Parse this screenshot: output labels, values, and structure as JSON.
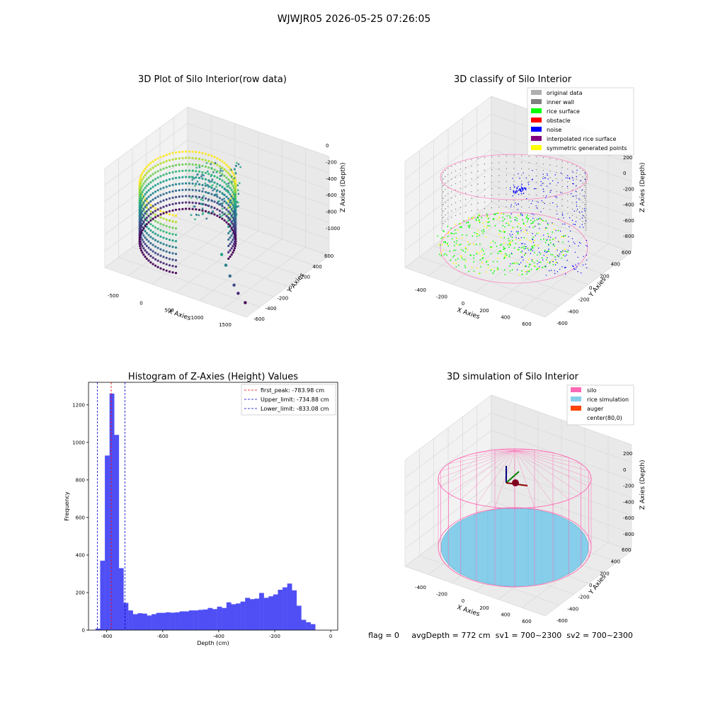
{
  "suptitle": "WJWJR05 2026-05-25 07:26:05",
  "status_line": "flag = 0     avgDepth = 772 cm  sv1 = 700~2300  sv2 = 700~2300",
  "colors": {
    "histogram_bar": "#4f4ff5",
    "first_peak_line": "#ff0000",
    "limit_line": "#0000cc",
    "pane": "#f2f2f2",
    "grid": "#d9d9d9",
    "silo": "#ff69b4",
    "rice_simulation": "#87ceeb",
    "auger": "#ff4500",
    "original_data": "#b0b0b0",
    "inner_wall": "#808080",
    "rice_surface": "#00ff00",
    "obstacle": "#ff0000",
    "noise": "#0000ff",
    "interpolated_rice_surface": "#800080",
    "symmetric_generated_points": "#ffff00"
  },
  "chart_data": [
    {
      "id": "raw",
      "type": "scatter",
      "projection": "3d",
      "title": "3D Plot of Silo Interior(row data)",
      "xlabel": "X Axies",
      "ylabel": "Y Axies",
      "zlabel": "Z Axies (Depth)",
      "xticks": [
        "-500",
        "0",
        "500",
        "1000",
        "1500"
      ],
      "yticks": [
        "-600",
        "-400",
        "-200",
        "0",
        "200",
        "400",
        "600"
      ],
      "zticks": [
        "0",
        "-200",
        "-400",
        "-600",
        "-800",
        "-1000"
      ],
      "xlim": [
        -700,
        1700
      ],
      "ylim": [
        -700,
        700
      ],
      "zlim": [
        -1150,
        50
      ],
      "colormap": "viridis",
      "outlier_points": [
        {
          "x": 700,
          "y": -120,
          "z": -950
        },
        {
          "x": 850,
          "y": -200,
          "z": -1000
        },
        {
          "x": 1000,
          "y": -280,
          "z": -1050
        },
        {
          "x": 1150,
          "y": -360,
          "z": -1080
        },
        {
          "x": 1300,
          "y": -440,
          "z": -1100
        },
        {
          "x": 1500,
          "y": -520,
          "z": -1120
        }
      ]
    },
    {
      "id": "classify",
      "type": "scatter",
      "projection": "3d",
      "title": "3D classify of Silo Interior",
      "xlabel": "X Axies",
      "ylabel": "Y Axies",
      "zlabel": "Z Axies (Depth)",
      "xticks": [
        "-400",
        "-200",
        "0",
        "200",
        "400",
        "600"
      ],
      "yticks": [
        "-600",
        "-400",
        "-200",
        "0",
        "200",
        "400",
        "600"
      ],
      "zticks": [
        "200",
        "0",
        "-200",
        "-400",
        "-600",
        "-800"
      ],
      "xlim": [
        -500,
        700
      ],
      "ylim": [
        -650,
        650
      ],
      "zlim": [
        -900,
        250
      ],
      "legend_position": "top-right",
      "legend": [
        {
          "label": "original data",
          "color": "#b0b0b0"
        },
        {
          "label": "inner wall",
          "color": "#808080"
        },
        {
          "label": "rice surface",
          "color": "#00ff00"
        },
        {
          "label": "obstacle",
          "color": "#ff0000"
        },
        {
          "label": "noise",
          "color": "#0000ff"
        },
        {
          "label": "interpolated rice surface",
          "color": "#800080"
        },
        {
          "label": "symmetric generated points",
          "color": "#ffff00"
        }
      ]
    },
    {
      "id": "hist",
      "type": "bar",
      "title": "Histogram of Z-Axies (Height) Values",
      "xlabel": "Depth (cm)",
      "ylabel": "Frequency",
      "xlim": [
        -865,
        25
      ],
      "ylim": [
        0,
        1320
      ],
      "xticks": [
        -800,
        -600,
        -400,
        -200,
        0
      ],
      "yticks": [
        0,
        200,
        400,
        600,
        800,
        1000,
        1200
      ],
      "grid": false,
      "legend_position": "top-right",
      "bin_width": 16.7,
      "bin_start": -840,
      "values": [
        8,
        370,
        930,
        1260,
        1040,
        330,
        145,
        105,
        85,
        90,
        88,
        78,
        85,
        92,
        92,
        95,
        93,
        95,
        100,
        100,
        105,
        105,
        108,
        110,
        118,
        112,
        125,
        118,
        148,
        138,
        142,
        152,
        172,
        165,
        168,
        198,
        172,
        180,
        190,
        215,
        228,
        248,
        212,
        130,
        55,
        42,
        32
      ],
      "reference_lines": [
        {
          "label": "first_peak: -783.98 cm",
          "x": -783.98,
          "color": "#ff0000"
        },
        {
          "label": "Upper_limit: -734.88 cm",
          "x": -734.88,
          "color": "#0000cc"
        },
        {
          "label": "Lower_limit: -833.08 cm",
          "x": -833.08,
          "color": "#0000cc"
        }
      ]
    },
    {
      "id": "sim",
      "type": "surface",
      "projection": "3d",
      "title": "3D simulation of Silo Interior",
      "xlabel": "X Axies",
      "ylabel": "Y Axies",
      "zlabel": "Z Axies (Depth)",
      "xticks": [
        "-400",
        "-200",
        "0",
        "200",
        "400",
        "600"
      ],
      "yticks": [
        "-600",
        "-400",
        "-200",
        "0",
        "200",
        "400",
        "600"
      ],
      "zticks": [
        "200",
        "0",
        "-200",
        "-400",
        "-600",
        "-800"
      ],
      "xlim": [
        -500,
        700
      ],
      "ylim": [
        -650,
        650
      ],
      "zlim": [
        -900,
        300
      ],
      "legend_position": "top-right",
      "legend": [
        {
          "label": "silo",
          "color": "#ff69b4"
        },
        {
          "label": "rice simulation",
          "color": "#87ceeb"
        },
        {
          "label": "auger",
          "color": "#ff4500"
        },
        {
          "label": "center(80,0)",
          "color": ""
        }
      ]
    }
  ]
}
